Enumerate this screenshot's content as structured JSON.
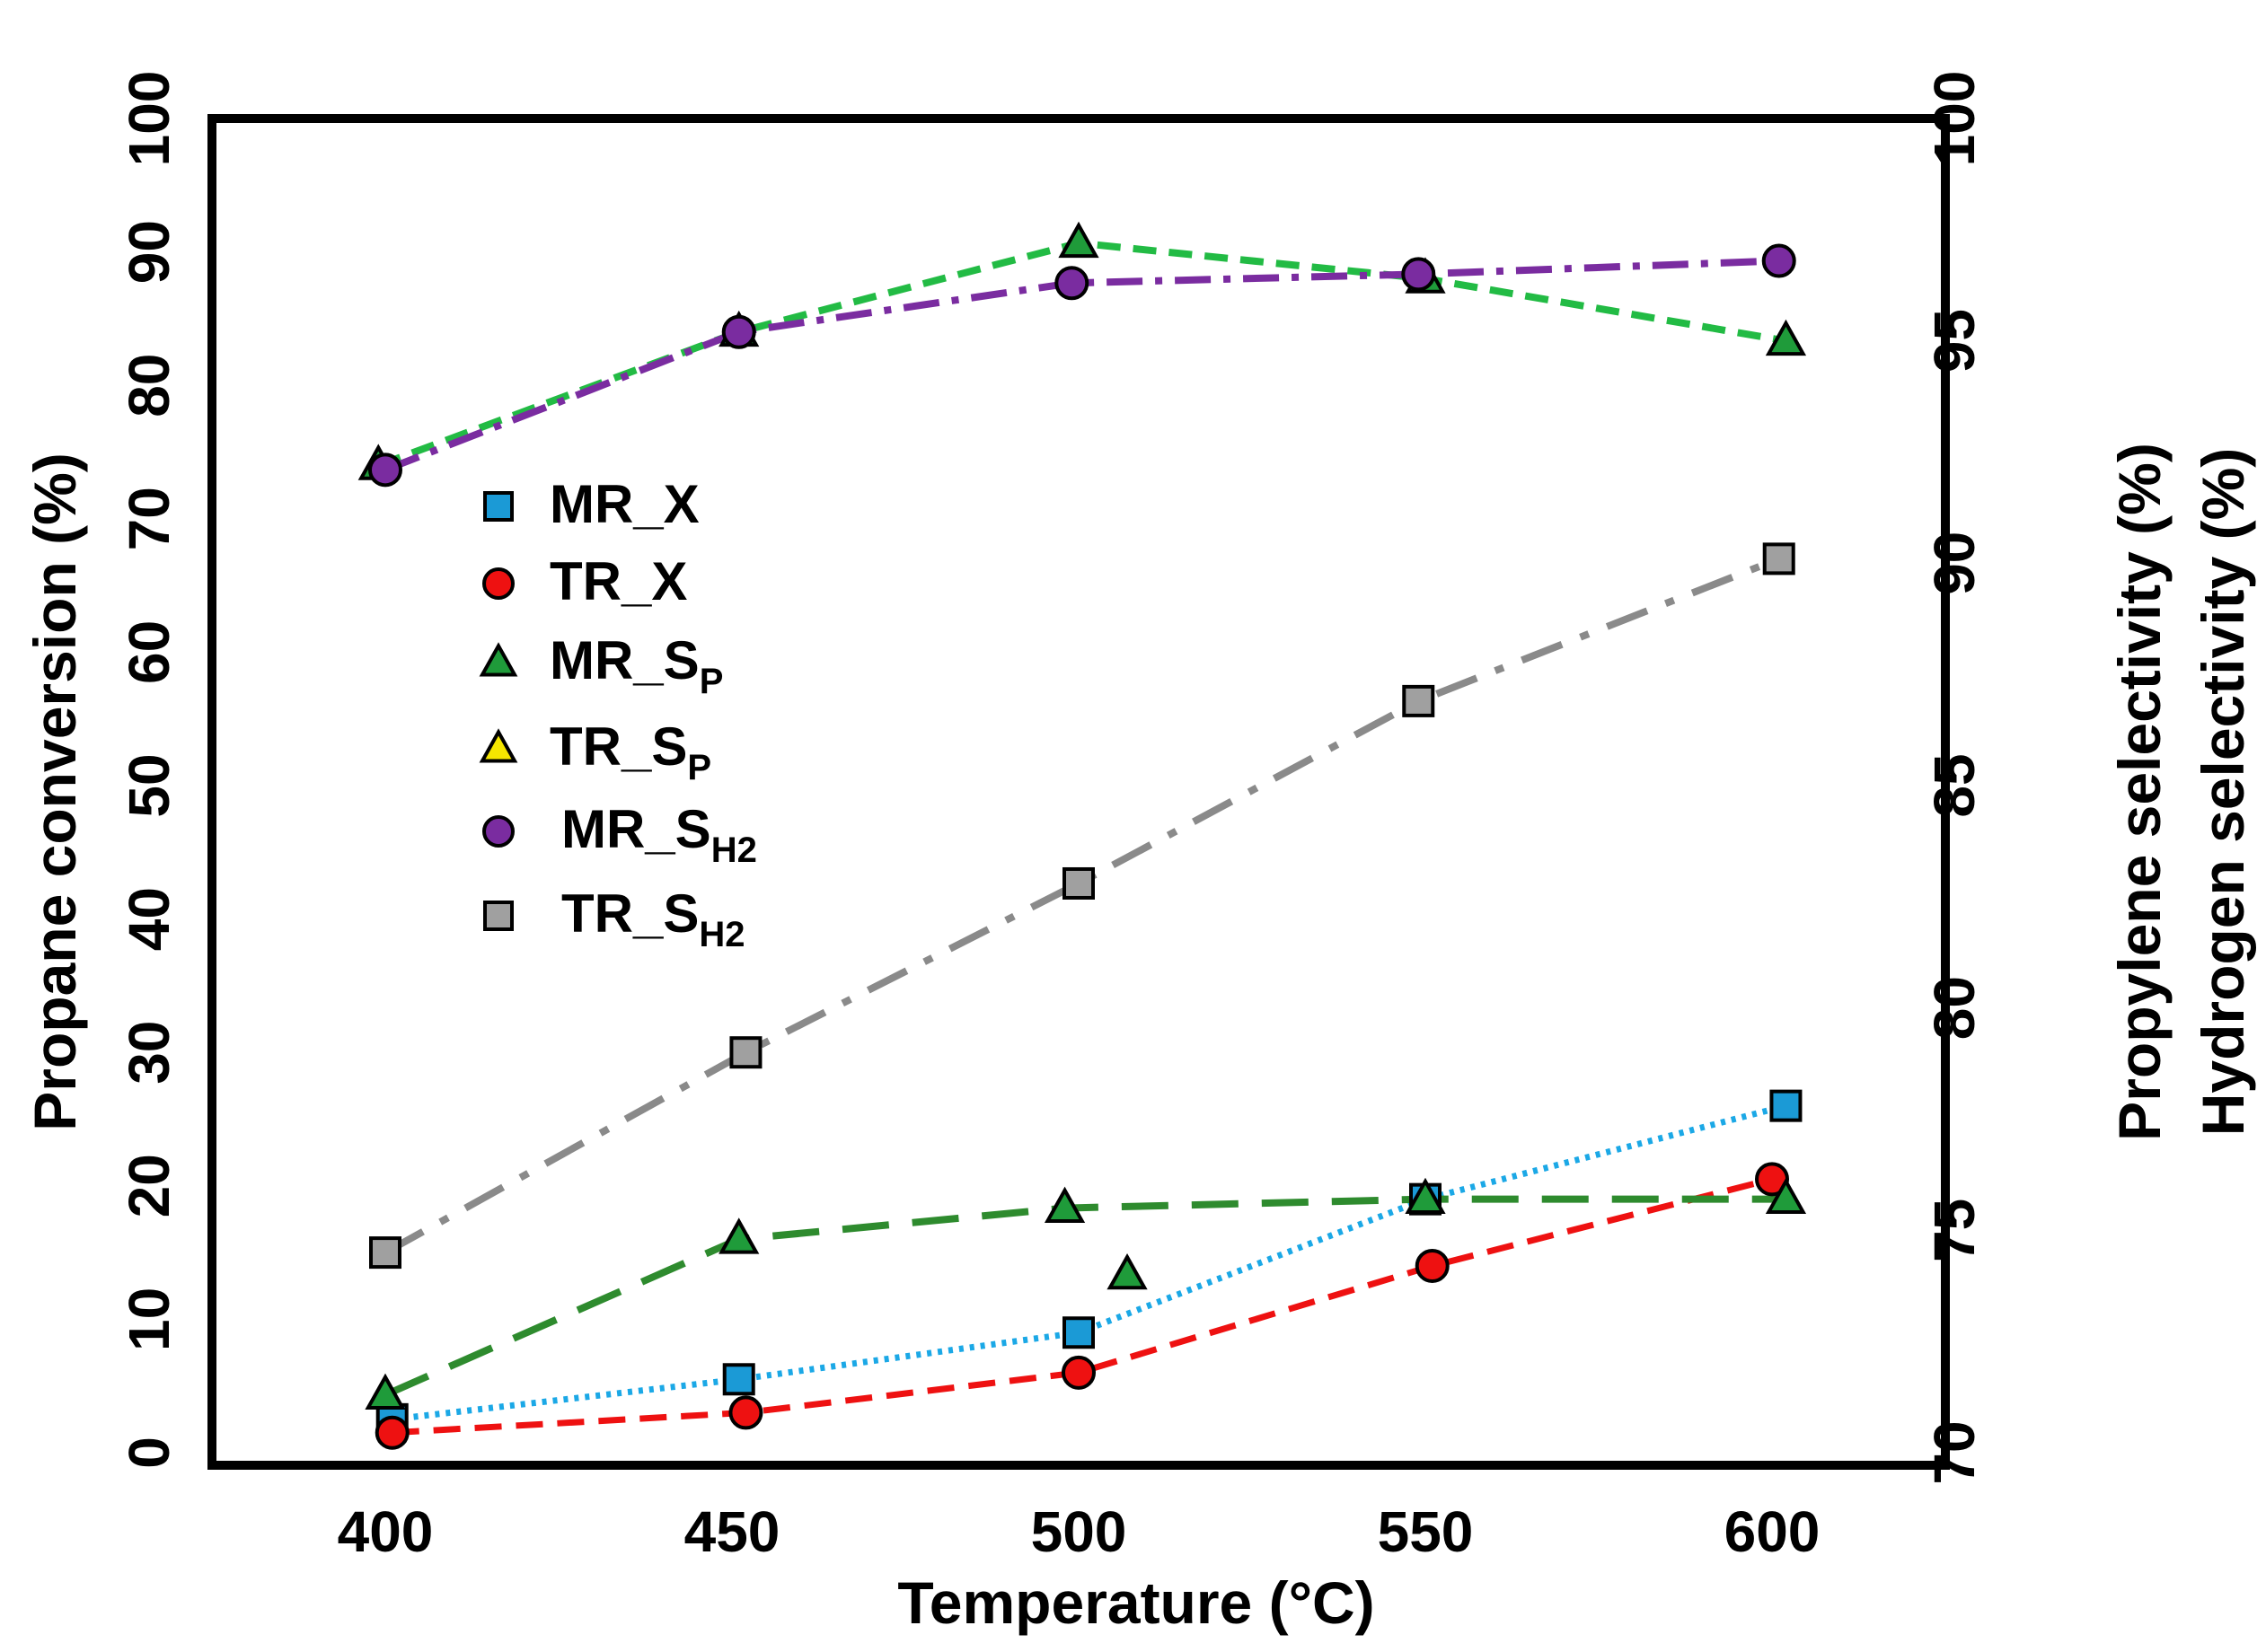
{
  "chart_data": {
    "type": "line",
    "xlabel": "Temperature (°C)",
    "ylabel_left": "Propane conversion (%)",
    "ylabel_right_1": "Propylene selectivity (%)",
    "ylabel_right_2": "Hydrogen selectivity (%)",
    "xlim": [
      375,
      625
    ],
    "ylim_left": [
      0,
      100
    ],
    "ylim_right": [
      70,
      100
    ],
    "xticks": [
      400,
      450,
      500,
      550,
      600
    ],
    "xtick_labels": [
      "400",
      "450",
      "500",
      "550",
      "600"
    ],
    "yticks_left": [
      0,
      10,
      20,
      30,
      40,
      50,
      60,
      70,
      80,
      90,
      100
    ],
    "ytick_labels_left": [
      "0",
      "10",
      "20",
      "30",
      "40",
      "50",
      "60",
      "70",
      "80",
      "90",
      "100"
    ],
    "yticks_right": [
      70,
      75,
      80,
      85,
      90,
      95,
      100
    ],
    "ytick_labels_right": [
      "70",
      "75",
      "80",
      "85",
      "90",
      "95",
      "100"
    ],
    "legend_position": "center-left",
    "series": [
      {
        "name": "MR_X",
        "legend_main": "MR_X",
        "legend_sub": "",
        "axis": "left",
        "marker": "square",
        "color": "#1b9ad6",
        "line_color": "#1ba8e6",
        "dash": "5,7",
        "line_width": 7,
        "points": [
          [
            401,
            2.5
          ],
          [
            451,
            5.5
          ],
          [
            500,
            9
          ],
          [
            550,
            19
          ],
          [
            602,
            26
          ]
        ]
      },
      {
        "name": "TR_X",
        "legend_main": "TR_X",
        "legend_sub": "",
        "axis": "left",
        "marker": "circle",
        "color": "#ee1111",
        "line_color": "#ee1111",
        "dash": "30,16",
        "line_width": 7,
        "points": [
          [
            401,
            1.5
          ],
          [
            452,
            3
          ],
          [
            500,
            6
          ],
          [
            551,
            14
          ],
          [
            600,
            20.5
          ]
        ]
      },
      {
        "name": "MR_SP",
        "legend_main": "MR_S",
        "legend_sub": "P",
        "axis": "right",
        "marker": "triangle",
        "color": "#1f9b3a",
        "line_color": "#2e8b2e",
        "dash": "52,26",
        "line_width": 8,
        "points": [
          [
            400,
            71.3
          ],
          [
            451,
            74.8
          ],
          [
            498,
            75.5
          ],
          [
            550,
            75.7
          ],
          [
            602,
            75.7
          ]
        ]
      },
      {
        "name": "TR_SP",
        "legend_main": "TR_S",
        "legend_sub": "P",
        "axis": "right",
        "marker": "triangle",
        "color": "#1f9b3a",
        "line_color": "#22bb44",
        "dash": "26,14",
        "line_width": 8,
        "points": [
          [
            399,
            92.2
          ],
          [
            451,
            95.2
          ],
          [
            500,
            97.2
          ],
          [
            550,
            96.4
          ],
          [
            602,
            95.0
          ]
        ]
      },
      {
        "name": "MR_SH2",
        "legend_main": "MR_S",
        "legend_sub": "H2",
        "axis": "right",
        "marker": "circle",
        "color": "#7a2ca0",
        "line_color": "#7a2ca0",
        "dash": "40,14,8,14",
        "line_width": 8,
        "points": [
          [
            400,
            92.1
          ],
          [
            451,
            95.2
          ],
          [
            499,
            96.3
          ],
          [
            549,
            96.5
          ],
          [
            601,
            96.8
          ]
        ]
      },
      {
        "name": "TR_SH2",
        "legend_main": "TR_S",
        "legend_sub": "H2",
        "axis": "right",
        "marker": "square",
        "color": "#a0a0a0",
        "line_color": "#8a8a8a",
        "dash": "48,22,10,22",
        "line_width": 8,
        "points": [
          [
            400,
            74.5
          ],
          [
            452,
            79
          ],
          [
            500,
            82.8
          ],
          [
            549,
            86.9
          ],
          [
            601,
            90.1
          ]
        ]
      }
    ],
    "extra_points": [
      {
        "series": "MR_SP",
        "marker": "triangle",
        "color": "#1f9b3a",
        "axis": "right",
        "x": 507,
        "y": 74.0
      }
    ],
    "legend_markers": [
      {
        "marker": "square",
        "color": "#1b9ad6"
      },
      {
        "marker": "circle",
        "color": "#ee1111"
      },
      {
        "marker": "triangle",
        "color": "#1f9b3a"
      },
      {
        "marker": "triangle",
        "color": "#f5e600"
      },
      {
        "marker": "circle",
        "color": "#7a2ca0"
      },
      {
        "marker": "square",
        "color": "#a0a0a0"
      }
    ]
  }
}
